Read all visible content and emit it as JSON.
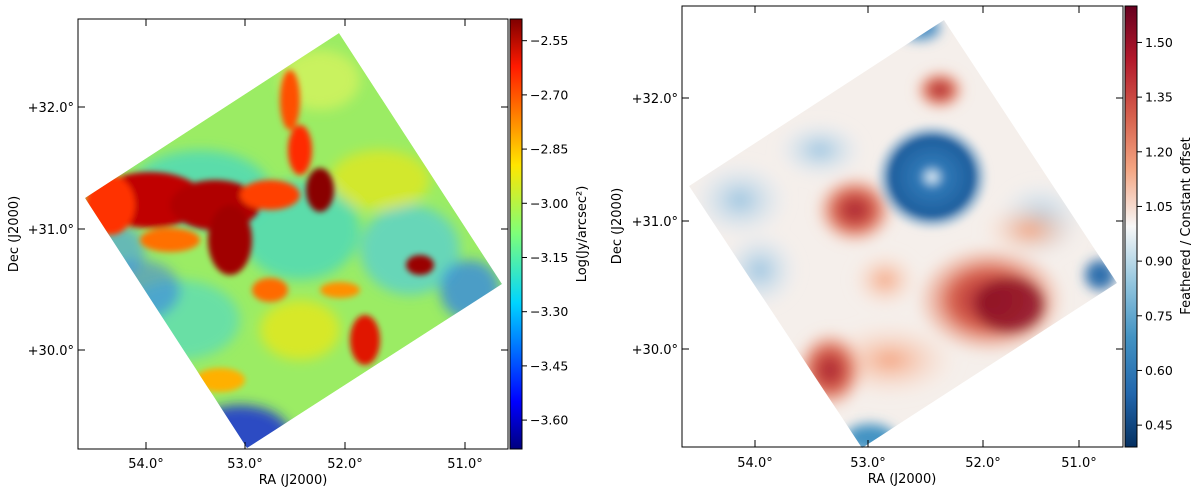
{
  "chart_data": [
    {
      "type": "heatmap",
      "title": "",
      "xlabel": "RA (J2000)",
      "ylabel": "Dec (J2000)",
      "x_ticks": [
        "54.0°",
        "53.0°",
        "52.0°",
        "51.0°"
      ],
      "x_tick_values": [
        54.0,
        53.0,
        52.0,
        51.0
      ],
      "y_ticks": [
        "+32.0°",
        "+31.0°",
        "+30.0°"
      ],
      "y_tick_values": [
        32.0,
        31.0,
        30.0
      ],
      "xlim": [
        54.6,
        50.6
      ],
      "ylim": [
        29.3,
        32.7
      ],
      "colormap": "jet",
      "colorbar": {
        "label": "Log(Jy/arcsec²)",
        "ticks": [
          "−2.55",
          "−2.70",
          "−2.85",
          "−3.00",
          "−3.15",
          "−3.30",
          "−3.45",
          "−3.60"
        ],
        "tick_values": [
          -2.55,
          -2.7,
          -2.85,
          -3.0,
          -3.15,
          -3.3,
          -3.45,
          -3.6
        ],
        "range": [
          -3.68,
          -2.49
        ]
      }
    },
    {
      "type": "heatmap",
      "title": "",
      "xlabel": "RA (J2000)",
      "ylabel": "Dec (J2000)",
      "x_ticks": [
        "54.0°",
        "53.0°",
        "52.0°",
        "51.0°"
      ],
      "x_tick_values": [
        54.0,
        53.0,
        52.0,
        51.0
      ],
      "y_ticks": [
        "+32.0°",
        "+31.0°",
        "+30.0°"
      ],
      "y_tick_values": [
        32.0,
        31.0,
        30.0
      ],
      "xlim": [
        54.6,
        50.6
      ],
      "ylim": [
        29.3,
        32.7
      ],
      "colormap": "RdBu_r",
      "colorbar": {
        "label": "Feathered / Constant offset",
        "ticks": [
          "1.50",
          "1.35",
          "1.20",
          "1.05",
          "0.90",
          "0.75",
          "0.60",
          "0.45"
        ],
        "tick_values": [
          1.5,
          1.35,
          1.2,
          1.05,
          0.9,
          0.75,
          0.6,
          0.45
        ],
        "range": [
          0.39,
          1.6
        ]
      }
    }
  ]
}
